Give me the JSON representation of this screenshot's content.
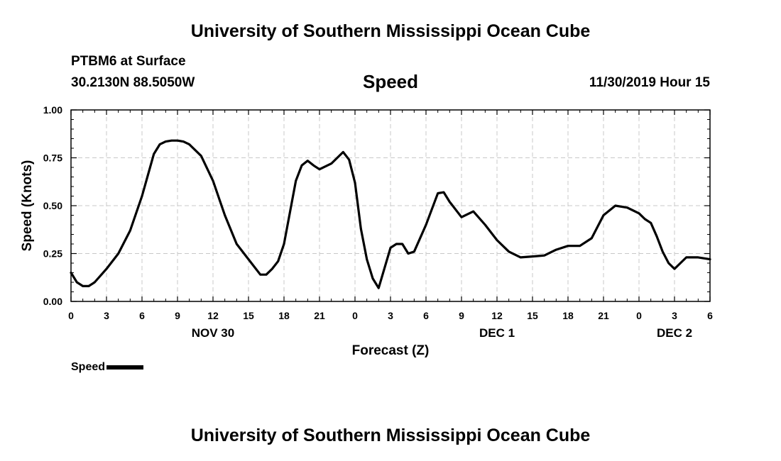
{
  "header": {
    "title": "University of Southern Mississippi Ocean Cube",
    "station": "PTBM6 at Surface",
    "coordinates": "30.2130N 88.5050W",
    "variable": "Speed",
    "timestamp": "11/30/2019 Hour 15"
  },
  "footer": {
    "title": "University of Southern Mississippi Ocean Cube"
  },
  "legend": {
    "label": "Speed"
  },
  "chart_data": {
    "type": "line",
    "title": "Speed",
    "xlabel": "Forecast (Z)",
    "ylabel": "Speed (Knots)",
    "xlim": [
      0,
      54
    ],
    "ylim": [
      0,
      1
    ],
    "grid": true,
    "x_ticks": [
      0,
      3,
      6,
      9,
      12,
      15,
      18,
      21,
      24,
      27,
      30,
      33,
      36,
      39,
      42,
      45,
      48,
      51,
      54
    ],
    "x_tick_labels": [
      "0",
      "3",
      "6",
      "9",
      "12",
      "15",
      "18",
      "21",
      "0",
      "3",
      "6",
      "9",
      "12",
      "15",
      "18",
      "21",
      "0",
      "3",
      "6"
    ],
    "y_ticks": [
      0,
      0.25,
      0.5,
      0.75,
      1.0
    ],
    "y_tick_labels": [
      "0.00",
      "0.25",
      "0.50",
      "0.75",
      "1.00"
    ],
    "date_labels": [
      {
        "x": 12,
        "label": "NOV 30"
      },
      {
        "x": 36,
        "label": "DEC 1"
      },
      {
        "x": 51,
        "label": "DEC 2"
      }
    ],
    "series": [
      {
        "name": "Speed",
        "color": "#000000",
        "x": [
          0,
          0.5,
          1,
          1.5,
          2,
          3,
          4,
          5,
          6,
          7,
          7.5,
          8,
          8.5,
          9,
          9.5,
          10,
          11,
          12,
          13,
          14,
          15,
          16,
          16.5,
          17,
          17.5,
          18,
          19,
          19.5,
          20,
          20.5,
          21,
          22,
          23,
          23.5,
          24,
          24.5,
          25,
          25.5,
          26,
          27,
          27.5,
          28,
          28.5,
          29,
          30,
          31,
          31.5,
          32,
          33,
          34,
          35,
          36,
          37,
          38,
          39,
          40,
          41,
          42,
          43,
          44,
          45,
          46,
          47,
          48,
          48.5,
          49,
          49.5,
          50,
          50.5,
          51,
          51.5,
          52,
          53,
          54
        ],
        "y": [
          0.15,
          0.1,
          0.08,
          0.08,
          0.1,
          0.17,
          0.25,
          0.37,
          0.55,
          0.77,
          0.82,
          0.835,
          0.84,
          0.84,
          0.835,
          0.82,
          0.76,
          0.63,
          0.45,
          0.3,
          0.22,
          0.14,
          0.14,
          0.17,
          0.21,
          0.3,
          0.63,
          0.71,
          0.735,
          0.71,
          0.69,
          0.72,
          0.78,
          0.74,
          0.62,
          0.38,
          0.22,
          0.12,
          0.07,
          0.28,
          0.3,
          0.3,
          0.25,
          0.26,
          0.4,
          0.565,
          0.57,
          0.52,
          0.44,
          0.47,
          0.4,
          0.32,
          0.26,
          0.23,
          0.235,
          0.24,
          0.27,
          0.29,
          0.29,
          0.33,
          0.45,
          0.5,
          0.49,
          0.46,
          0.43,
          0.41,
          0.34,
          0.26,
          0.2,
          0.17,
          0.2,
          0.23,
          0.23,
          0.22
        ]
      }
    ]
  }
}
